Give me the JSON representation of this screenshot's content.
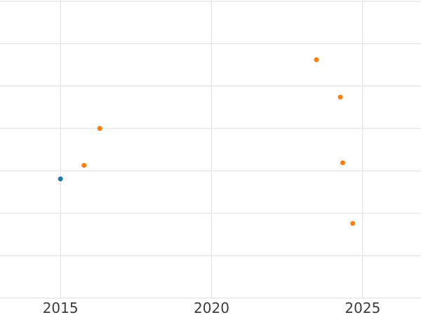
{
  "chart_data": {
    "type": "scatter",
    "title": "",
    "xlabel": "",
    "ylabel": "",
    "background": "#ffffff",
    "grid": true,
    "grid_color": "#e8e8e8",
    "grid_width": 1.5,
    "tick_label_color": "#3d3d3d",
    "tick_font_size": 20,
    "xlim": [
      2013.0,
      2026.93
    ],
    "ylim": [
      -0.4,
      7.03
    ],
    "x_ticks": [
      {
        "value": 2015,
        "label": "2015"
      },
      {
        "value": 2020,
        "label": "2020"
      },
      {
        "value": 2025,
        "label": "2025"
      }
    ],
    "y_ticks_visible": false,
    "y_gridlines": [
      0,
      1,
      2,
      3,
      4,
      5,
      6,
      7
    ],
    "series": [
      {
        "name": "blue",
        "color": "#1f77b4",
        "marker_radius": 3.5,
        "points": [
          {
            "x": 2015.0,
            "y": 2.81
          }
        ]
      },
      {
        "name": "orange",
        "color": "#ff7f0e",
        "marker_radius": 3.5,
        "points": [
          {
            "x": 2015.78,
            "y": 3.13
          },
          {
            "x": 2016.3,
            "y": 4.0
          },
          {
            "x": 2023.47,
            "y": 5.62
          },
          {
            "x": 2024.26,
            "y": 4.74
          },
          {
            "x": 2024.34,
            "y": 3.19
          },
          {
            "x": 2024.67,
            "y": 1.76
          }
        ]
      }
    ]
  }
}
